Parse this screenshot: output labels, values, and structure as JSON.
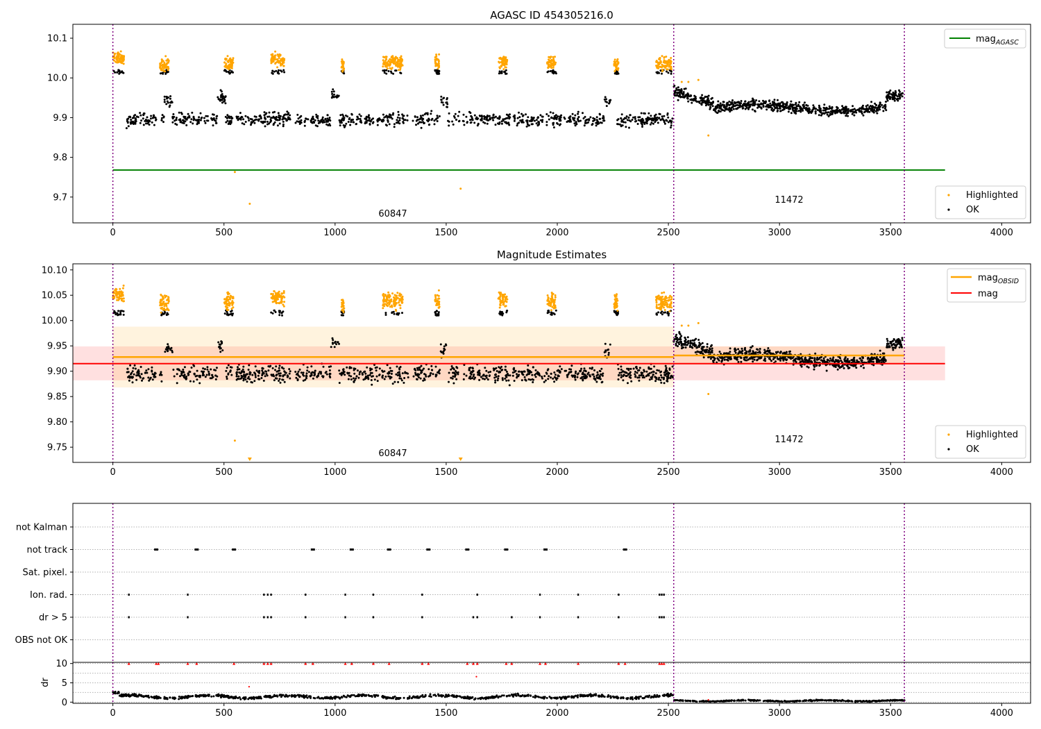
{
  "chart_data": [
    {
      "type": "scatter",
      "title": "AGASC ID 454305216.0",
      "xlabel": "",
      "ylabel": "",
      "xlim": [
        -180,
        4130
      ],
      "ylim": [
        9.635,
        10.135
      ],
      "xticks": [
        "0",
        "500",
        "1000",
        "1500",
        "2000",
        "2500",
        "3000",
        "3500",
        "4000"
      ],
      "yticks": [
        "9.7",
        "9.8",
        "9.9",
        "10.0",
        "10.1"
      ],
      "obs_boundaries": [
        0,
        2524,
        3562
      ],
      "obsid_labels": [
        {
          "text": "60847",
          "x": 1262,
          "y": 9.655
        },
        {
          "text": "11472",
          "x": 3043,
          "y": 9.69
        }
      ],
      "lines": [
        {
          "name": "mag",
          "subscript": "AGASC",
          "color": "#008000",
          "y": 9.768,
          "x": [
            0,
            3745
          ]
        }
      ],
      "series": [
        {
          "name": "Highlighted",
          "color": "#FFA500"
        },
        {
          "name": "OK",
          "color": "#000000"
        }
      ],
      "outliers": [
        {
          "x": 549,
          "y": 9.763
        },
        {
          "x": 616,
          "y": 9.683
        },
        {
          "x": 1565,
          "y": 9.721
        },
        {
          "x": 2680,
          "y": 9.855
        }
      ],
      "legends": {
        "line_legend": "top-right",
        "scatter_legend": "bottom-right"
      },
      "grid": false
    },
    {
      "type": "scatter",
      "title": "Magnitude Estimates",
      "xlabel": "",
      "ylabel": "",
      "xlim": [
        -180,
        4130
      ],
      "ylim": [
        9.72,
        10.112
      ],
      "xticks": [
        "0",
        "500",
        "1000",
        "1500",
        "2000",
        "2500",
        "3000",
        "3500",
        "4000"
      ],
      "yticks": [
        "9.75",
        "9.80",
        "9.85",
        "9.90",
        "9.95",
        "10.00",
        "10.05",
        "10.10"
      ],
      "obs_boundaries": [
        0,
        2524,
        3562
      ],
      "obsid_labels": [
        {
          "text": "60847",
          "x": 1262,
          "y": 9.732
        },
        {
          "text": "11472",
          "x": 3043,
          "y": 9.762
        }
      ],
      "lines": [
        {
          "name": "mag",
          "subscript": "OBSID",
          "color": "#FFA500",
          "segments": [
            {
              "x": [
                0,
                2524
              ],
              "y": 9.928,
              "band": [
                9.868,
                9.988
              ]
            },
            {
              "x": 2524,
              "x_end": 3562,
              "y": 9.931,
              "band": [
                9.913,
                9.949
              ]
            }
          ]
        },
        {
          "name": "mag",
          "subscript": "",
          "color": "#FF0000",
          "y": 9.915,
          "x": [
            -180,
            3745
          ],
          "band": [
            9.882,
            9.949
          ]
        }
      ],
      "series": [
        {
          "name": "Highlighted",
          "color": "#FFA500"
        },
        {
          "name": "OK",
          "color": "#000000"
        }
      ],
      "outliers": [
        {
          "x": 549,
          "y": 9.763
        },
        {
          "x": 2680,
          "y": 9.855
        }
      ],
      "below_range_markers": [
        616,
        1565
      ],
      "legends": {
        "line_legend": "top-right",
        "scatter_legend": "bottom-right"
      },
      "grid": false
    },
    {
      "type": "scatter",
      "title": "",
      "xlabel": "",
      "ylabel": "",
      "xlim": [
        -180,
        4130
      ],
      "xticks": [
        "0",
        "500",
        "1000",
        "1500",
        "2000",
        "2500",
        "3000",
        "3500",
        "4000"
      ],
      "obs_boundaries": [
        0,
        2524,
        3562
      ],
      "flag_rows": [
        "not Kalman",
        "not track",
        "Sat. pixel.",
        "Ion. rad.",
        "dr > 5",
        "OBS not OK"
      ],
      "flags": {
        "not track": [
          195,
          377,
          545,
          900,
          1075,
          1243,
          1420,
          1595,
          1770,
          1947,
          2305
        ],
        "Ion. rad.": [
          72,
          337,
          680,
          697,
          712,
          867,
          1046,
          1172,
          1392,
          1640,
          1922,
          2094,
          2276,
          2460,
          2470,
          2480
        ],
        "dr > 5": [
          72,
          337,
          680,
          697,
          712,
          867,
          1046,
          1172,
          1392,
          1622,
          1640,
          1795,
          1922,
          2094,
          2276,
          2460,
          2470,
          2480
        ]
      }
    },
    {
      "type": "scatter",
      "title": "",
      "xlabel": "",
      "ylabel": "dr",
      "xlim": [
        -180,
        4130
      ],
      "ylim": [
        -0.3,
        10.3
      ],
      "xticks": [
        "0",
        "500",
        "1000",
        "1500",
        "2000",
        "2500",
        "3000",
        "3500",
        "4000"
      ],
      "yticks": [
        "0",
        "5",
        "10"
      ],
      "obs_boundaries": [
        0,
        2524,
        3562
      ],
      "clipped_markers": [
        72,
        195,
        205,
        337,
        377,
        545,
        680,
        697,
        712,
        867,
        900,
        1046,
        1075,
        1172,
        1243,
        1392,
        1420,
        1595,
        1622,
        1640,
        1770,
        1795,
        1922,
        1947,
        2094,
        2276,
        2305,
        2460,
        2470,
        2480
      ],
      "extra_points": [
        {
          "x": 613,
          "y": 4.0
        },
        {
          "x": 1636,
          "y": 6.6
        },
        {
          "x": 2680,
          "y": 0.6
        }
      ],
      "dr_levels": [
        {
          "x": [
            0,
            2524
          ],
          "mean": 1.4,
          "spread": 0.6
        },
        {
          "x": [
            2524,
            3562
          ],
          "mean": 0.35,
          "spread": 0.25
        }
      ]
    }
  ]
}
